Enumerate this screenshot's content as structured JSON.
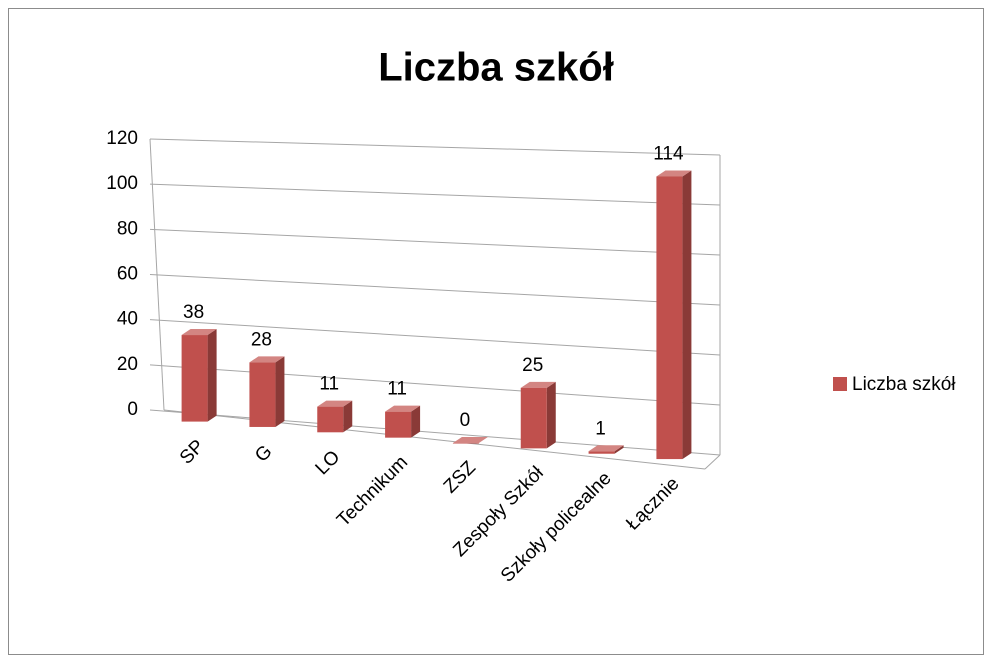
{
  "chart_data": {
    "type": "bar3d",
    "title": "Liczba szkół",
    "categories": [
      "SP",
      "G",
      "LO",
      "Technikum",
      "ZSZ",
      "Zespoły Szkół",
      "Szkoły policealne",
      "Łącznie"
    ],
    "series": [
      {
        "name": "Liczba szkół",
        "color": "#c0504d",
        "values": [
          38,
          28,
          11,
          11,
          0,
          25,
          1,
          114
        ]
      }
    ],
    "ylim": [
      0,
      120
    ],
    "yticks": [
      0,
      20,
      40,
      60,
      80,
      100,
      120
    ],
    "grid": true,
    "legend": "right"
  }
}
